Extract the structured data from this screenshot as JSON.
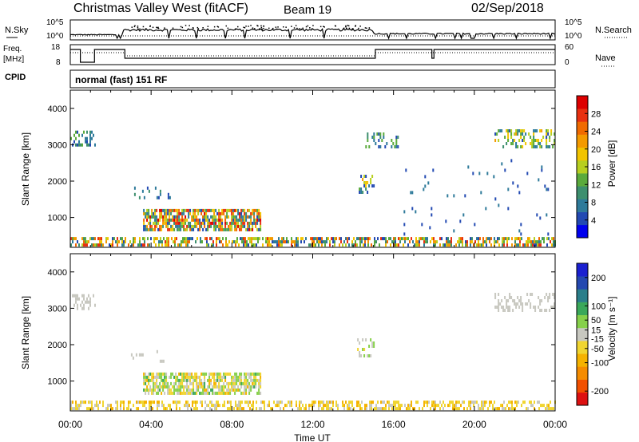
{
  "header": {
    "station": "Christmas Valley West (fitACF)",
    "beam": "Beam 19",
    "date": "02/Sep/2018"
  },
  "mode_text": "normal (fast) 151 RF",
  "chart_data": [
    {
      "type": "line",
      "panel": "noise",
      "left_label": "N.Sky",
      "right_label": "N.Search",
      "left_ticks": [
        "10^5",
        "10^0"
      ],
      "right_ticks": [
        "10^5",
        "10^0"
      ],
      "xlim": [
        0,
        24
      ]
    },
    {
      "type": "line",
      "panel": "frequency",
      "left_label_lines": [
        "Freq.",
        "[MHz]"
      ],
      "right_label": "Nave",
      "left_ticks": [
        18,
        8
      ],
      "right_ticks": [
        60,
        0
      ],
      "xlim": [
        0,
        24
      ]
    },
    {
      "type": "heatmap",
      "panel": "power",
      "ylabel": "Slant Range [km]",
      "yticks": [
        1000,
        2000,
        3000,
        4000
      ],
      "ylim": [
        180,
        4500
      ],
      "xlim": [
        0,
        24
      ],
      "colorbar": {
        "label": "Power [dB]",
        "range": [
          0,
          32
        ],
        "ticks": [
          4,
          8,
          12,
          16,
          20,
          24,
          28
        ],
        "colors": [
          "#0000ee",
          "#2249b2",
          "#2e7a9a",
          "#3d8f6e",
          "#5aaa3c",
          "#b7cf20",
          "#f2c400",
          "#f49a00",
          "#f06a00",
          "#e83010",
          "#dd0000"
        ]
      },
      "regions": [
        {
          "t0": 3.6,
          "t1": 9.4,
          "r0": 620,
          "r1": 1220,
          "density": 0.75,
          "vmin": 4,
          "vmax": 31
        },
        {
          "t0": 0.0,
          "t1": 1.2,
          "r0": 2950,
          "r1": 3350,
          "density": 0.35,
          "vmin": 3,
          "vmax": 14
        },
        {
          "t0": 21.0,
          "t1": 24.0,
          "r0": 2900,
          "r1": 3400,
          "density": 0.4,
          "vmin": 4,
          "vmax": 22
        },
        {
          "t0": 14.2,
          "t1": 15.0,
          "r0": 1650,
          "r1": 2150,
          "density": 0.35,
          "vmin": 3,
          "vmax": 22
        },
        {
          "t0": 14.6,
          "t1": 16.2,
          "r0": 2900,
          "r1": 3300,
          "density": 0.25,
          "vmin": 3,
          "vmax": 14
        },
        {
          "t0": 0.0,
          "t1": 24.0,
          "r0": 200,
          "r1": 420,
          "density": 0.55,
          "vmin": 3,
          "vmax": 28
        },
        {
          "t0": 3.0,
          "t1": 5.0,
          "r0": 1500,
          "r1": 1800,
          "density": 0.12,
          "vmin": 3,
          "vmax": 10
        },
        {
          "t0": 16.5,
          "t1": 24.0,
          "r0": 500,
          "r1": 2600,
          "density": 0.02,
          "vmin": 3,
          "vmax": 8
        }
      ]
    },
    {
      "type": "heatmap",
      "panel": "velocity",
      "ylabel": "Slant Range [km]",
      "yticks": [
        1000,
        2000,
        3000,
        4000
      ],
      "ylim": [
        180,
        4500
      ],
      "xlim": [
        0,
        24
      ],
      "xticks": [
        "00:00",
        "04:00",
        "08:00",
        "12:00",
        "16:00",
        "20:00",
        "00:00"
      ],
      "xlabel": "Time UT",
      "colorbar": {
        "label": "Velocity [m s⁻¹]",
        "range": [
          -250,
          250
        ],
        "ticks": [
          -200,
          -100,
          -50,
          -15,
          15,
          50,
          100,
          200
        ],
        "colors": [
          "#dd1111",
          "#f25000",
          "#f58c00",
          "#f5b200",
          "#f0d530",
          "#c8c8c0",
          "#86d04a",
          "#3aa85a",
          "#2a7e8a",
          "#2448b0",
          "#1a20d0"
        ]
      },
      "regions": [
        {
          "t0": 3.6,
          "t1": 9.4,
          "r0": 620,
          "r1": 1220,
          "density": 0.7,
          "vmin": -80,
          "vmax": 80
        },
        {
          "t0": 0.0,
          "t1": 1.2,
          "r0": 2950,
          "r1": 3350,
          "density": 0.35,
          "vmin": -10,
          "vmax": 10
        },
        {
          "t0": 21.0,
          "t1": 24.0,
          "r0": 2900,
          "r1": 3400,
          "density": 0.4,
          "vmin": -10,
          "vmax": 10
        },
        {
          "t0": 14.2,
          "t1": 15.0,
          "r0": 1650,
          "r1": 2150,
          "density": 0.35,
          "vmin": -30,
          "vmax": 40
        },
        {
          "t0": 0.0,
          "t1": 24.0,
          "r0": 200,
          "r1": 420,
          "density": 0.5,
          "vmin": -90,
          "vmax": 0
        },
        {
          "t0": 3.0,
          "t1": 5.0,
          "r0": 1500,
          "r1": 1800,
          "density": 0.12,
          "vmin": -10,
          "vmax": 10
        }
      ]
    }
  ]
}
